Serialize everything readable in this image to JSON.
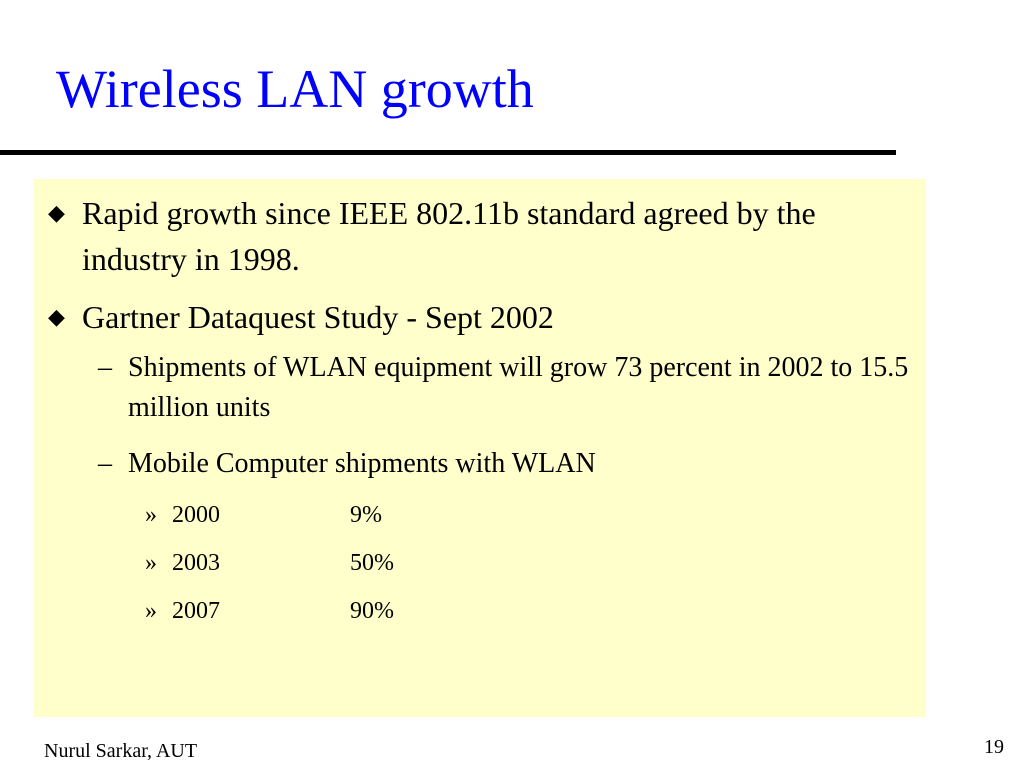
{
  "slide": {
    "title": "Wireless LAN growth",
    "colors": {
      "title": "#0000ff",
      "content_background": "#ffffcc",
      "rule": "#000000"
    },
    "bullets": [
      {
        "marker_icon": "diamond-bullet-icon",
        "text": "Rapid growth since IEEE 802.11b standard agreed by the industry in 1998."
      },
      {
        "marker_icon": "diamond-bullet-icon",
        "text": "Gartner Dataquest Study - Sept 2002"
      }
    ],
    "sub_bullets": [
      {
        "marker": "–",
        "text": "Shipments of WLAN equipment will grow 73 percent in 2002 to 15.5 million units"
      },
      {
        "marker": "–",
        "text": "Mobile Computer shipments with WLAN"
      }
    ],
    "stats": [
      {
        "marker": "»",
        "year": "2000",
        "value": "9%"
      },
      {
        "marker": "»",
        "year": "2003",
        "value": "50%"
      },
      {
        "marker": "»",
        "year": "2007",
        "value": "90%"
      }
    ],
    "footer": {
      "author": "Nurul Sarkar, AUT",
      "page_number": "19"
    }
  }
}
